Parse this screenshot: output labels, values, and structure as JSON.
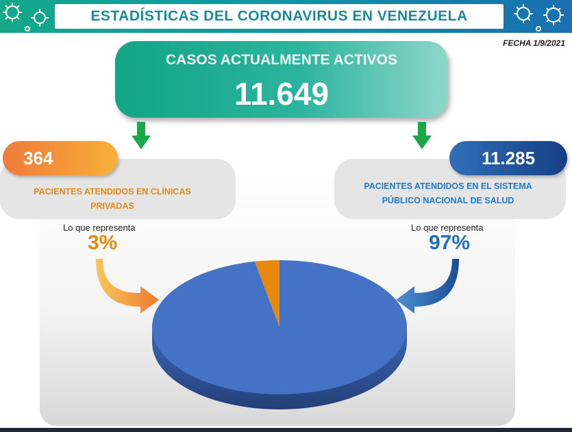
{
  "header": {
    "title": "ESTADÍSTICAS DEL CORONAVIRUS EN VENEZUELA"
  },
  "date": "FECHA 1/9/2021",
  "active_cases": {
    "label": "CASOS ACTUALMENTE ACTIVOS",
    "value": "11.649"
  },
  "private": {
    "value": "364",
    "label_line1": "PACIENTES ATENDIDOS EN CLÍNICAS",
    "label_line2": "PRIVADAS",
    "represent_label": "Lo que representa",
    "percent": "3%",
    "color": "#e68a15"
  },
  "public": {
    "value": "11.285",
    "label_line1": "PACIENTES ATENDIDOS EN EL SISTEMA",
    "label_line2": "PÚBLICO NACIONAL DE SALUD",
    "represent_label": "Lo que representa",
    "percent": "97%",
    "color": "#1f78c8"
  },
  "chart_data": {
    "type": "pie",
    "categories": [
      "PACIENTES ATENDIDOS EN CLÍNICAS PRIVADAS",
      "PACIENTES ATENDIDOS EN EL SISTEMA PÚBLICO NACIONAL DE SALUD"
    ],
    "values": [
      364,
      11285
    ],
    "percent_labels": [
      "3%",
      "97%"
    ],
    "colors": [
      "#e8890f",
      "#4472c4"
    ]
  }
}
